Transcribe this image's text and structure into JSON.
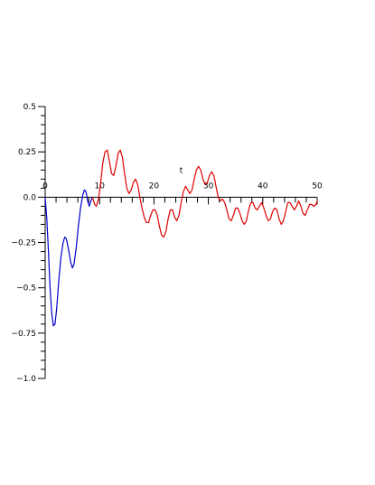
{
  "chart_data": {
    "type": "line",
    "title": "",
    "xlabel": "t",
    "ylabel": "",
    "xlim": [
      0,
      50
    ],
    "ylim": [
      -1.0,
      0.5
    ],
    "x_major_ticks": [
      0,
      10,
      20,
      30,
      40,
      50
    ],
    "x_tick_labels": [
      "0",
      "10",
      "20",
      "30",
      "40",
      "50"
    ],
    "x_minor_step": 2,
    "y_major_ticks": [
      0.5,
      0.25,
      0.0,
      -0.25,
      -0.5,
      -0.75,
      -1.0
    ],
    "y_tick_labels": [
      "0.5",
      "0.25",
      "0.0",
      "−0.25",
      "−0.5",
      "−0.75",
      "−1.0"
    ],
    "y_minor_step": 0.05,
    "grid": false,
    "legend": "none",
    "series": [
      {
        "color": "#0000cc",
        "points": [
          [
            0.0,
            0.0
          ],
          [
            0.3,
            -0.12
          ],
          [
            0.6,
            -0.3
          ],
          [
            0.9,
            -0.5
          ],
          [
            1.2,
            -0.64
          ],
          [
            1.5,
            -0.71
          ],
          [
            1.8,
            -0.7
          ],
          [
            2.1,
            -0.62
          ],
          [
            2.5,
            -0.46
          ],
          [
            2.9,
            -0.33
          ],
          [
            3.3,
            -0.25
          ],
          [
            3.6,
            -0.22
          ],
          [
            3.9,
            -0.23
          ],
          [
            4.3,
            -0.29
          ],
          [
            4.7,
            -0.36
          ],
          [
            5.0,
            -0.39
          ],
          [
            5.3,
            -0.37
          ],
          [
            5.7,
            -0.28
          ],
          [
            6.1,
            -0.16
          ],
          [
            6.5,
            -0.06
          ],
          [
            6.9,
            0.01
          ],
          [
            7.2,
            0.04
          ],
          [
            7.5,
            0.03
          ],
          [
            7.8,
            -0.02
          ],
          [
            8.1,
            -0.05
          ],
          [
            8.4,
            -0.02
          ],
          [
            8.7,
            0.0
          ]
        ]
      },
      {
        "color": "#dd0000",
        "points": [
          [
            8.7,
            0.0
          ],
          [
            9.1,
            -0.04
          ],
          [
            9.4,
            -0.05
          ],
          [
            9.8,
            -0.01
          ],
          [
            10.2,
            0.08
          ],
          [
            10.6,
            0.19
          ],
          [
            11.0,
            0.25
          ],
          [
            11.4,
            0.26
          ],
          [
            11.8,
            0.2
          ],
          [
            12.2,
            0.13
          ],
          [
            12.6,
            0.12
          ],
          [
            13.0,
            0.17
          ],
          [
            13.4,
            0.24
          ],
          [
            13.8,
            0.26
          ],
          [
            14.2,
            0.22
          ],
          [
            14.6,
            0.13
          ],
          [
            15.0,
            0.05
          ],
          [
            15.4,
            0.02
          ],
          [
            15.8,
            0.04
          ],
          [
            16.2,
            0.08
          ],
          [
            16.6,
            0.1
          ],
          [
            17.0,
            0.07
          ],
          [
            17.4,
            0.0
          ],
          [
            17.8,
            -0.06
          ],
          [
            18.2,
            -0.11
          ],
          [
            18.6,
            -0.14
          ],
          [
            19.0,
            -0.14
          ],
          [
            19.4,
            -0.1
          ],
          [
            19.8,
            -0.07
          ],
          [
            20.2,
            -0.07
          ],
          [
            20.6,
            -0.1
          ],
          [
            21.0,
            -0.16
          ],
          [
            21.4,
            -0.21
          ],
          [
            21.8,
            -0.22
          ],
          [
            22.2,
            -0.19
          ],
          [
            22.6,
            -0.12
          ],
          [
            23.0,
            -0.07
          ],
          [
            23.4,
            -0.07
          ],
          [
            23.8,
            -0.11
          ],
          [
            24.2,
            -0.13
          ],
          [
            24.6,
            -0.1
          ],
          [
            25.0,
            -0.03
          ],
          [
            25.4,
            0.03
          ],
          [
            25.8,
            0.06
          ],
          [
            26.2,
            0.04
          ],
          [
            26.6,
            0.02
          ],
          [
            27.0,
            0.04
          ],
          [
            27.4,
            0.1
          ],
          [
            27.8,
            0.15
          ],
          [
            28.2,
            0.17
          ],
          [
            28.6,
            0.15
          ],
          [
            29.0,
            0.1
          ],
          [
            29.4,
            0.07
          ],
          [
            29.8,
            0.08
          ],
          [
            30.2,
            0.12
          ],
          [
            30.6,
            0.14
          ],
          [
            31.0,
            0.12
          ],
          [
            31.4,
            0.06
          ],
          [
            31.8,
            0.0
          ],
          [
            32.2,
            -0.02
          ],
          [
            32.6,
            -0.01
          ],
          [
            33.0,
            -0.03
          ],
          [
            33.4,
            -0.07
          ],
          [
            33.8,
            -0.12
          ],
          [
            34.2,
            -0.13
          ],
          [
            34.6,
            -0.1
          ],
          [
            35.0,
            -0.06
          ],
          [
            35.4,
            -0.06
          ],
          [
            35.8,
            -0.09
          ],
          [
            36.2,
            -0.13
          ],
          [
            36.6,
            -0.15
          ],
          [
            37.0,
            -0.13
          ],
          [
            37.4,
            -0.07
          ],
          [
            37.8,
            -0.03
          ],
          [
            38.2,
            -0.03
          ],
          [
            38.6,
            -0.06
          ],
          [
            39.0,
            -0.07
          ],
          [
            39.4,
            -0.05
          ],
          [
            39.8,
            -0.03
          ],
          [
            40.2,
            -0.06
          ],
          [
            40.6,
            -0.1
          ],
          [
            41.0,
            -0.13
          ],
          [
            41.4,
            -0.12
          ],
          [
            41.8,
            -0.08
          ],
          [
            42.2,
            -0.06
          ],
          [
            42.6,
            -0.07
          ],
          [
            43.0,
            -0.12
          ],
          [
            43.4,
            -0.15
          ],
          [
            43.8,
            -0.13
          ],
          [
            44.2,
            -0.08
          ],
          [
            44.6,
            -0.03
          ],
          [
            45.0,
            -0.03
          ],
          [
            45.4,
            -0.05
          ],
          [
            45.8,
            -0.07
          ],
          [
            46.2,
            -0.05
          ],
          [
            46.6,
            -0.02
          ],
          [
            47.0,
            -0.05
          ],
          [
            47.4,
            -0.09
          ],
          [
            47.8,
            -0.1
          ],
          [
            48.2,
            -0.07
          ],
          [
            48.6,
            -0.04
          ],
          [
            49.0,
            -0.04
          ],
          [
            49.4,
            -0.05
          ],
          [
            49.8,
            -0.04
          ],
          [
            50.0,
            -0.02
          ]
        ]
      }
    ]
  }
}
